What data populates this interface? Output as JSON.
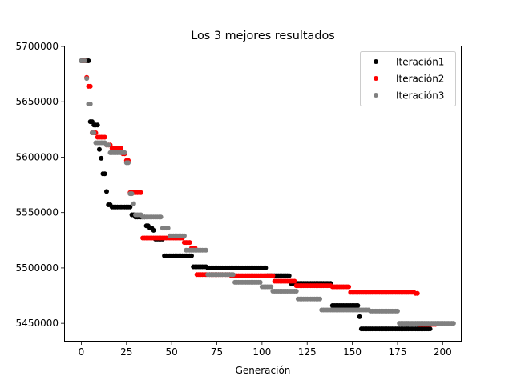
{
  "chart_data": {
    "type": "scatter",
    "title": "Los 3 mejores resultados",
    "xlabel": "Generación",
    "ylabel": "",
    "xlim": [
      -9.5,
      210.5
    ],
    "ylim": [
      5433500,
      5700000
    ],
    "xticks": [
      0,
      25,
      50,
      75,
      100,
      125,
      150,
      175,
      200
    ],
    "xtick_labels": [
      "0",
      "25",
      "50",
      "75",
      "100",
      "125",
      "150",
      "175",
      "200"
    ],
    "yticks": [
      5450000,
      5500000,
      5550000,
      5600000,
      5650000,
      5700000
    ],
    "ytick_labels": [
      "5450000",
      "5500000",
      "5550000",
      "5600000",
      "5650000",
      "5700000"
    ],
    "legend_position": "top-right",
    "series": [
      {
        "name": "Iteración1",
        "color": "#000000",
        "x_start": 0,
        "segments": [
          {
            "len": 5,
            "y": 5687000
          },
          {
            "len": 2,
            "y": 5632000
          },
          {
            "len": 3,
            "y": 5629000
          },
          {
            "len": 1,
            "y": 5607000
          },
          {
            "len": 1,
            "y": 5599000
          },
          {
            "len": 2,
            "y": 5585000
          },
          {
            "len": 1,
            "y": 5569000
          },
          {
            "len": 2,
            "y": 5557000
          },
          {
            "len": 11,
            "y": 5555000
          },
          {
            "len": 2,
            "y": 5548000
          },
          {
            "len": 3,
            "y": 5546000
          },
          {
            "len": 3,
            "y": 5546000
          },
          {
            "len": 2,
            "y": 5538000
          },
          {
            "len": 2,
            "y": 5536000
          },
          {
            "len": 1,
            "y": 5534000
          },
          {
            "len": 5,
            "y": 5526000
          },
          {
            "len": 12,
            "y": 5511000
          },
          {
            "len": 4,
            "y": 5511000
          },
          {
            "len": 8,
            "y": 5501000
          },
          {
            "len": 33,
            "y": 5500000
          },
          {
            "len": 13,
            "y": 5493000
          },
          {
            "len": 23,
            "y": 5486000
          },
          {
            "len": 15,
            "y": 5466000
          },
          {
            "len": 1,
            "y": 5456000
          },
          {
            "len": 39,
            "y": 5445000
          }
        ]
      },
      {
        "name": "Iteración2",
        "color": "#ff0000",
        "x_start": 1,
        "segments": [
          {
            "len": 2,
            "y": 5687000
          },
          {
            "len": 1,
            "y": 5672000
          },
          {
            "len": 2,
            "y": 5664000
          },
          {
            "len": 3,
            "y": 5622000
          },
          {
            "len": 5,
            "y": 5618000
          },
          {
            "len": 3,
            "y": 5611000
          },
          {
            "len": 6,
            "y": 5608000
          },
          {
            "len": 2,
            "y": 5603000
          },
          {
            "len": 2,
            "y": 5597000
          },
          {
            "len": 7,
            "y": 5568000
          },
          {
            "len": 23,
            "y": 5527000
          },
          {
            "len": 4,
            "y": 5523000
          },
          {
            "len": 3,
            "y": 5518000
          },
          {
            "len": 19,
            "y": 5494000
          },
          {
            "len": 24,
            "y": 5493000
          },
          {
            "len": 12,
            "y": 5488000
          },
          {
            "len": 20,
            "y": 5484000
          },
          {
            "len": 10,
            "y": 5483000
          },
          {
            "len": 36,
            "y": 5478000
          },
          {
            "len": 2,
            "y": 5477000
          },
          {
            "len": 10,
            "y": 5449000
          }
        ]
      },
      {
        "name": "Iteración3",
        "color": "#808080",
        "x_start": 0,
        "segments": [
          {
            "len": 3,
            "y": 5687000
          },
          {
            "len": 1,
            "y": 5671000
          },
          {
            "len": 2,
            "y": 5648000
          },
          {
            "len": 2,
            "y": 5622000
          },
          {
            "len": 6,
            "y": 5613000
          },
          {
            "len": 2,
            "y": 5611000
          },
          {
            "len": 9,
            "y": 5604000
          },
          {
            "len": 2,
            "y": 5595000
          },
          {
            "len": 2,
            "y": 5567000
          },
          {
            "len": 1,
            "y": 5558000
          },
          {
            "len": 4,
            "y": 5548000
          },
          {
            "len": 11,
            "y": 5546000
          },
          {
            "len": 4,
            "y": 5536000
          },
          {
            "len": 9,
            "y": 5529000
          },
          {
            "len": 12,
            "y": 5516000
          },
          {
            "len": 15,
            "y": 5494000
          },
          {
            "len": 15,
            "y": 5487000
          },
          {
            "len": 6,
            "y": 5483000
          },
          {
            "len": 14,
            "y": 5479000
          },
          {
            "len": 13,
            "y": 5472000
          },
          {
            "len": 27,
            "y": 5462000
          },
          {
            "len": 16,
            "y": 5461000
          },
          {
            "len": 31,
            "y": 5450000
          }
        ]
      }
    ]
  }
}
